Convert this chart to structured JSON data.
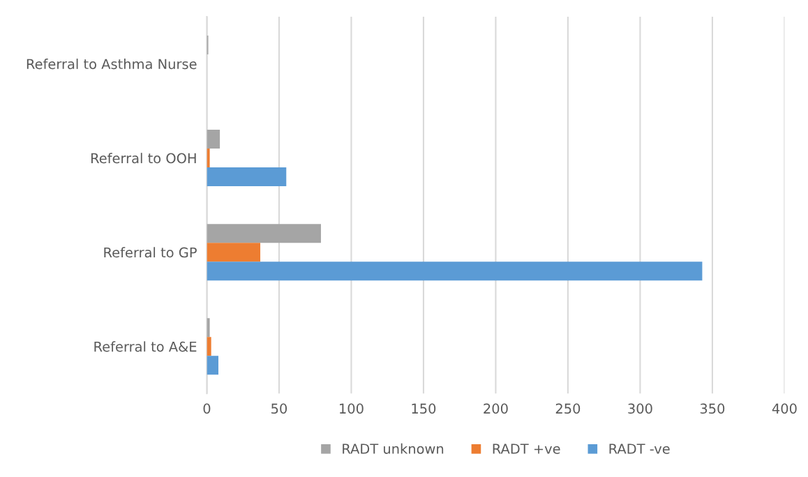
{
  "chart_data": {
    "type": "bar",
    "orientation": "horizontal",
    "categories": [
      "Referral to Asthma Nurse",
      "Referral to OOH",
      "Referral to GP",
      "Referral to A&E"
    ],
    "series": [
      {
        "name": "RADT unknown",
        "color": "#a5a5a5",
        "values": [
          1,
          9,
          79,
          2
        ]
      },
      {
        "name": "RADT +ve",
        "color": "#ed7d31",
        "values": [
          0,
          2,
          37,
          3
        ]
      },
      {
        "name": "RADT -ve",
        "color": "#5b9bd5",
        "values": [
          0,
          55,
          343,
          8
        ]
      }
    ],
    "xlim": [
      0,
      400
    ],
    "xticks": [
      0,
      50,
      100,
      150,
      200,
      250,
      300,
      350,
      400
    ],
    "grid": "x",
    "legend": "bottom"
  }
}
